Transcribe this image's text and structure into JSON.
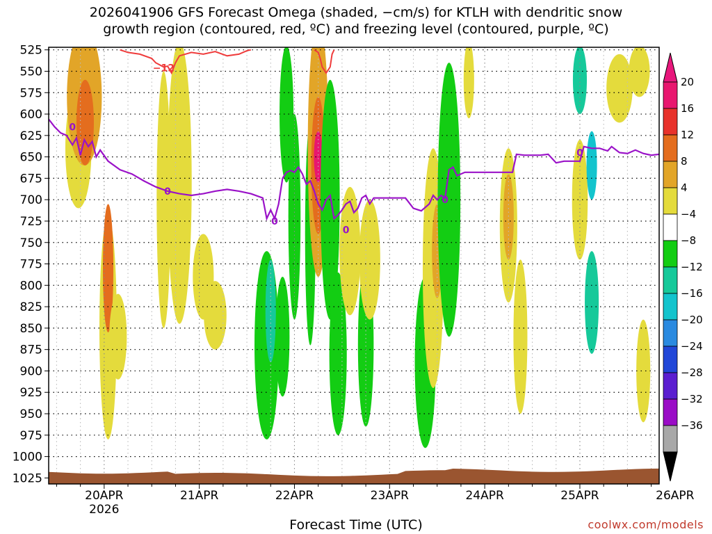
{
  "chart_data": {
    "type": "heatmap",
    "title_line1": "2026041906 GFS Forecast Omega (shaded, −cm/s) for KTLH with dendritic snow",
    "title_line2": "growth region (contoured, red, ºC) and freezing level (contoured, purple, ºC)",
    "xlabel": "Forecast Time (UTC)",
    "credit": "coolwx.com/models",
    "yticks": [
      "525",
      "550",
      "575",
      "600",
      "625",
      "650",
      "675",
      "700",
      "725",
      "750",
      "775",
      "800",
      "825",
      "850",
      "875",
      "900",
      "925",
      "950",
      "975",
      "1000",
      "1025"
    ],
    "xticks": [
      "20APR",
      "21APR",
      "22APR",
      "23APR",
      "24APR",
      "25APR",
      "26APR"
    ],
    "xtick_year": "2026",
    "colorbar_labels": [
      "20",
      "16",
      "12",
      "8",
      "4",
      "−4",
      "−8",
      "−12",
      "−16",
      "−20",
      "−24",
      "−28",
      "−32",
      "−36"
    ],
    "colorbar_colors": [
      "#e8176f",
      "#e8322b",
      "#e46d1e",
      "#e2a528",
      "#e4db3c",
      "#ffffff",
      "#13cd13",
      "#16c99a",
      "#13c4cd",
      "#2a8ae0",
      "#2147d8",
      "#5b1ed0",
      "#9a0cc6",
      "#a8a8a8"
    ],
    "freezing_label": "0",
    "dendritic_label": "−12",
    "freezing_level_hpa": [
      [
        0.0,
        606
      ],
      [
        1.5,
        615
      ],
      [
        3,
        622
      ],
      [
        4.5,
        625
      ],
      [
        6,
        636
      ],
      [
        7,
        628
      ],
      [
        8,
        648
      ],
      [
        9,
        630
      ],
      [
        10,
        638
      ],
      [
        11,
        632
      ],
      [
        12,
        650
      ],
      [
        13,
        642
      ],
      [
        15,
        655
      ],
      [
        18,
        665
      ],
      [
        21,
        670
      ],
      [
        24,
        678
      ],
      [
        27,
        685
      ],
      [
        30,
        690
      ],
      [
        33,
        693
      ],
      [
        36,
        695
      ],
      [
        39,
        693
      ],
      [
        42,
        690
      ],
      [
        45,
        688
      ],
      [
        48,
        690
      ],
      [
        51,
        693
      ],
      [
        54,
        698
      ],
      [
        55,
        722
      ],
      [
        56,
        712
      ],
      [
        57,
        722
      ],
      [
        58,
        705
      ],
      [
        59,
        675
      ],
      [
        60,
        668
      ],
      [
        61,
        666
      ],
      [
        62,
        668
      ],
      [
        63,
        662
      ],
      [
        64,
        670
      ],
      [
        65,
        682
      ],
      [
        66,
        678
      ],
      [
        67,
        690
      ],
      [
        68,
        705
      ],
      [
        69,
        712
      ],
      [
        70,
        700
      ],
      [
        71,
        695
      ],
      [
        72,
        722
      ],
      [
        73,
        718
      ],
      [
        74,
        712
      ],
      [
        75,
        705
      ],
      [
        76,
        702
      ],
      [
        77,
        715
      ],
      [
        78,
        710
      ],
      [
        79,
        698
      ],
      [
        80,
        695
      ],
      [
        81,
        705
      ],
      [
        82,
        698
      ],
      [
        85,
        698
      ],
      [
        88,
        698
      ],
      [
        90,
        698
      ],
      [
        92,
        710
      ],
      [
        94,
        713
      ],
      [
        96,
        705
      ],
      [
        97,
        695
      ],
      [
        98,
        700
      ],
      [
        99,
        695
      ],
      [
        100,
        698
      ],
      [
        101,
        665
      ],
      [
        102,
        662
      ],
      [
        103,
        672
      ],
      [
        105,
        668
      ],
      [
        108,
        668
      ],
      [
        112,
        668
      ],
      [
        115,
        668
      ],
      [
        117,
        668
      ],
      [
        118,
        647
      ],
      [
        120,
        648
      ],
      [
        124,
        648
      ],
      [
        126,
        647
      ],
      [
        128,
        657
      ],
      [
        130,
        655
      ],
      [
        132,
        655
      ],
      [
        134,
        655
      ],
      [
        135,
        638
      ],
      [
        137,
        640
      ],
      [
        139,
        640
      ],
      [
        141,
        643
      ],
      [
        142,
        638
      ],
      [
        144,
        645
      ],
      [
        146,
        646
      ],
      [
        148,
        642
      ],
      [
        150,
        646
      ],
      [
        152,
        648
      ],
      [
        154,
        647
      ]
    ],
    "dendritic_contour_hpa": [
      [
        18,
        525
      ],
      [
        20,
        528
      ],
      [
        23,
        530
      ],
      [
        26,
        535
      ],
      [
        27,
        540
      ],
      [
        29,
        545
      ],
      [
        30,
        544
      ],
      [
        31,
        552
      ],
      [
        32,
        540
      ],
      [
        33,
        532
      ],
      [
        36,
        528
      ],
      [
        39,
        530
      ],
      [
        42,
        527
      ],
      [
        45,
        532
      ],
      [
        48,
        530
      ],
      [
        50,
        526
      ],
      [
        51,
        525
      ]
    ],
    "dendritic_contour2_hpa": [
      [
        67,
        525
      ],
      [
        68,
        528
      ],
      [
        68.5,
        535
      ],
      [
        69,
        545
      ],
      [
        70,
        552
      ],
      [
        71,
        545
      ],
      [
        71.5,
        530
      ],
      [
        72,
        525
      ]
    ],
    "omega_blobs": [
      {
        "t": 7.5,
        "p": 640,
        "w": 1.5,
        "h": 140,
        "v": 6
      },
      {
        "t": 9,
        "p": 580,
        "w": 2,
        "h": 160,
        "v": 10
      },
      {
        "t": 9.2,
        "p": 610,
        "w": 1.0,
        "h": 100,
        "v": 13
      },
      {
        "t": 15,
        "p": 850,
        "w": 1.0,
        "h": 260,
        "v": 7
      },
      {
        "t": 15,
        "p": 780,
        "w": 0.6,
        "h": 150,
        "v": 12
      },
      {
        "t": 17.5,
        "p": 860,
        "w": 1.0,
        "h": 100,
        "v": 5
      },
      {
        "t": 29,
        "p": 700,
        "w": 0.8,
        "h": 300,
        "v": 5
      },
      {
        "t": 33,
        "p": 680,
        "w": 1.4,
        "h": 330,
        "v": 6
      },
      {
        "t": 39,
        "p": 790,
        "w": 1.2,
        "h": 100,
        "v": 5
      },
      {
        "t": 42,
        "p": 835,
        "w": 1.3,
        "h": 80,
        "v": 5
      },
      {
        "t": 55,
        "p": 870,
        "w": 1.4,
        "h": 220,
        "v": -6
      },
      {
        "t": 56,
        "p": 830,
        "w": 0.6,
        "h": 120,
        "v": -10
      },
      {
        "t": 59,
        "p": 860,
        "w": 0.8,
        "h": 140,
        "v": -6
      },
      {
        "t": 60,
        "p": 600,
        "w": 0.8,
        "h": 160,
        "v": -6
      },
      {
        "t": 62,
        "p": 720,
        "w": 0.7,
        "h": 240,
        "v": -5
      },
      {
        "t": 66,
        "p": 740,
        "w": 0.6,
        "h": 260,
        "v": -6
      },
      {
        "t": 68,
        "p": 640,
        "w": 1.2,
        "h": 300,
        "v": 8
      },
      {
        "t": 68,
        "p": 660,
        "w": 0.8,
        "h": 160,
        "v": 14
      },
      {
        "t": 68,
        "p": 650,
        "w": 0.5,
        "h": 60,
        "v": 20
      },
      {
        "t": 71,
        "p": 700,
        "w": 1.1,
        "h": 280,
        "v": -6
      },
      {
        "t": 73,
        "p": 880,
        "w": 1.0,
        "h": 190,
        "v": -7
      },
      {
        "t": 76,
        "p": 760,
        "w": 1.2,
        "h": 150,
        "v": 6
      },
      {
        "t": 80,
        "p": 870,
        "w": 0.9,
        "h": 190,
        "v": -5
      },
      {
        "t": 81,
        "p": 770,
        "w": 1.2,
        "h": 140,
        "v": 5
      },
      {
        "t": 95,
        "p": 890,
        "w": 1.2,
        "h": 200,
        "v": -7
      },
      {
        "t": 97,
        "p": 780,
        "w": 1.2,
        "h": 280,
        "v": 7
      },
      {
        "t": 98,
        "p": 760,
        "w": 0.6,
        "h": 110,
        "v": 11
      },
      {
        "t": 101,
        "p": 700,
        "w": 1.3,
        "h": 320,
        "v": -5
      },
      {
        "t": 106,
        "p": 560,
        "w": 0.6,
        "h": 90,
        "v": 5
      },
      {
        "t": 116,
        "p": 730,
        "w": 1.0,
        "h": 180,
        "v": 6
      },
      {
        "t": 116,
        "p": 720,
        "w": 0.6,
        "h": 100,
        "v": 11
      },
      {
        "t": 119,
        "p": 860,
        "w": 0.8,
        "h": 180,
        "v": 5
      },
      {
        "t": 134,
        "p": 560,
        "w": 0.8,
        "h": 80,
        "v": -8
      },
      {
        "t": 134,
        "p": 700,
        "w": 0.9,
        "h": 140,
        "v": 6
      },
      {
        "t": 137,
        "p": 660,
        "w": 0.6,
        "h": 80,
        "v": -12
      },
      {
        "t": 137,
        "p": 820,
        "w": 0.8,
        "h": 120,
        "v": -8
      },
      {
        "t": 144,
        "p": 570,
        "w": 1.5,
        "h": 80,
        "v": 5
      },
      {
        "t": 149,
        "p": 550,
        "w": 1.2,
        "h": 60,
        "v": 5
      },
      {
        "t": 150,
        "p": 900,
        "w": 0.8,
        "h": 120,
        "v": 5
      }
    ]
  }
}
